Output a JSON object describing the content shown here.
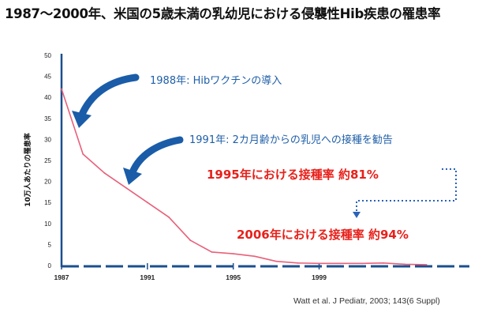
{
  "title": "1987～2000年、米国の5歳未満の乳幼児における侵襲性Hib疾患の罹患率",
  "chart_data": {
    "type": "line",
    "title": "1987～2000年、米国の5歳未満の乳幼児における侵襲性Hib疾患の罹患率",
    "ylabel": "10万人あたりの罹患率",
    "xlabel": "",
    "ylim": [
      0,
      50
    ],
    "xlim": [
      1987,
      2006
    ],
    "yticks": [
      "0",
      "5",
      "10",
      "15",
      "20",
      "25",
      "30",
      "35",
      "40",
      "45",
      "50"
    ],
    "xticks": [
      "1987",
      "1991",
      "1995",
      "1999"
    ],
    "x": [
      1987,
      1988,
      1989,
      1990,
      1991,
      1992,
      1993,
      1994,
      1995,
      1996,
      1997,
      1998,
      1999,
      2000,
      2001,
      2002,
      2003,
      2004
    ],
    "series": [
      {
        "values": [
          42,
          26.5,
          22,
          18.5,
          15,
          11.5,
          6,
          3.2,
          2.8,
          2.2,
          1,
          0.6,
          0.5,
          0.5,
          0.5,
          0.6,
          0.3,
          0.2
        ],
        "color": "#e8607a"
      }
    ],
    "grid": false,
    "annotations": [
      {
        "text": "1988年: Hibワクチンの導入",
        "color": "#1f5fa8"
      },
      {
        "text": "1991年: 2カ月齢からの乳児への接種を勧告",
        "color": "#1f5fa8"
      },
      {
        "text": "1995年における接種率  約81%",
        "color": "#e8201a"
      },
      {
        "text": "2006年における接種率  約94%",
        "color": "#e8201a"
      }
    ],
    "source": "Watt et al. J Pediatr, 2003; 143(6 Suppl)"
  },
  "colors": {
    "axis": "#1a4f8f",
    "line": "#e8607a",
    "arrow": "#1a5ca8",
    "dotted": "#2a63b8"
  }
}
